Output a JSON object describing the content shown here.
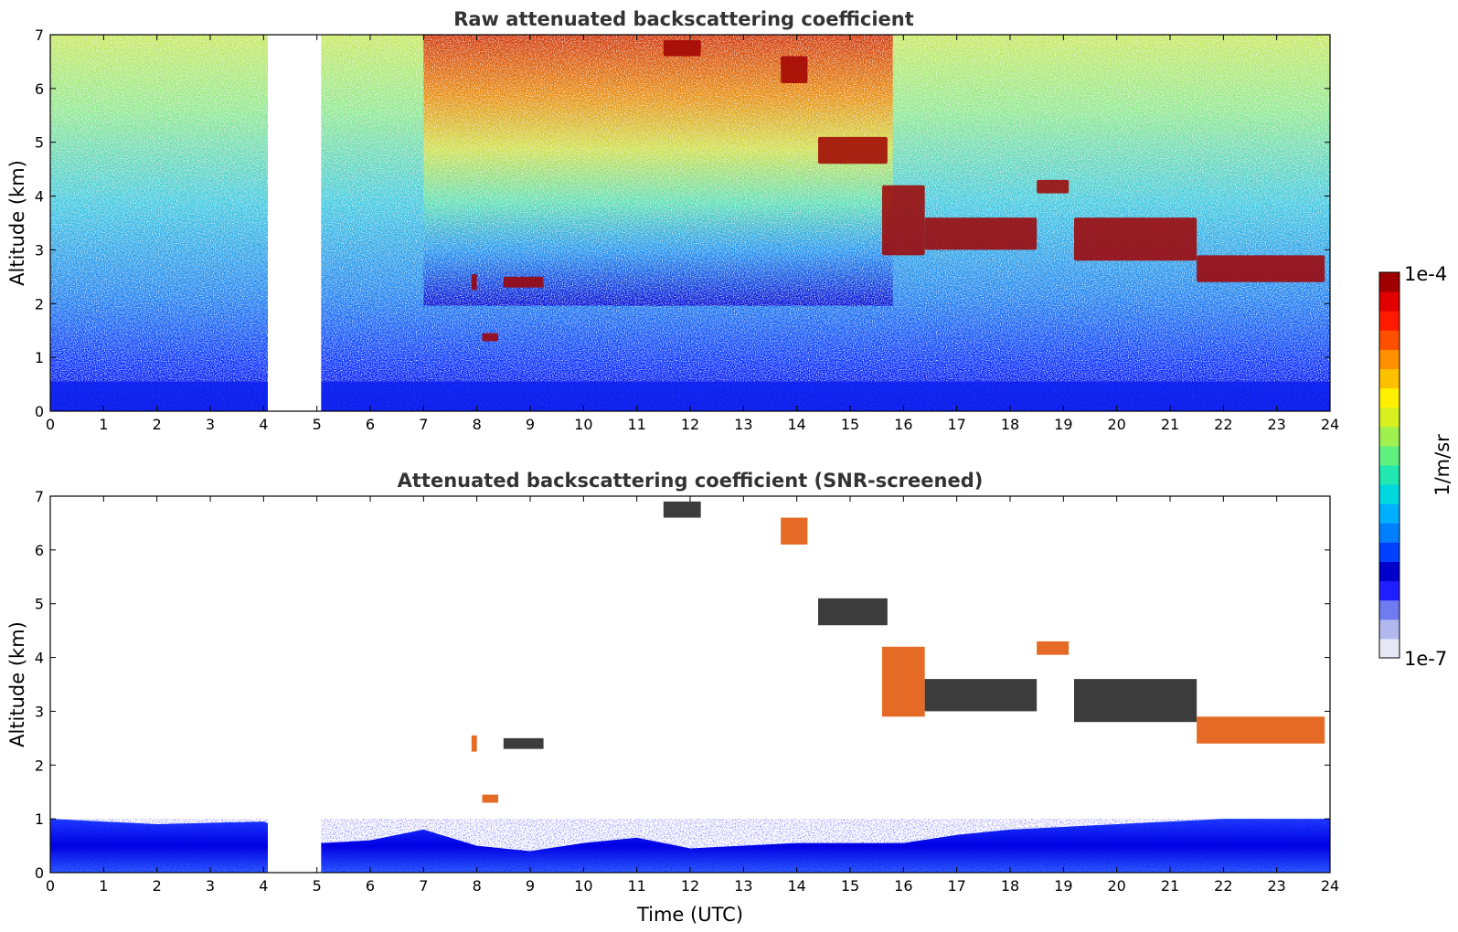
{
  "chart_data": [
    {
      "type": "heatmap",
      "title": "Raw attenuated backscattering coefficient",
      "xlabel": "",
      "ylabel": "Altitude (km)",
      "xlim": [
        0,
        24
      ],
      "ylim": [
        0,
        7
      ],
      "x_ticks": [
        "0",
        "1",
        "2",
        "3",
        "4",
        "5",
        "6",
        "7",
        "8",
        "9",
        "10",
        "11",
        "12",
        "13",
        "14",
        "15",
        "16",
        "17",
        "18",
        "19",
        "20",
        "21",
        "22",
        "23",
        "24"
      ],
      "y_ticks": [
        "0",
        "1",
        "2",
        "3",
        "4",
        "5",
        "6",
        "7"
      ],
      "data_gaps": [
        [
          4.08,
          5.08
        ]
      ],
      "cloud_layers": [
        {
          "t": [
            7.9,
            8.0
          ],
          "alt": [
            2.25,
            2.55
          ]
        },
        {
          "t": [
            8.5,
            9.25
          ],
          "alt": [
            2.3,
            2.5
          ]
        },
        {
          "t": [
            8.1,
            8.4
          ],
          "alt": [
            1.3,
            1.45
          ]
        },
        {
          "t": [
            14.4,
            15.7
          ],
          "alt": [
            4.6,
            5.1
          ]
        },
        {
          "t": [
            15.6,
            16.4
          ],
          "alt": [
            2.9,
            4.2
          ]
        },
        {
          "t": [
            16.4,
            18.5
          ],
          "alt": [
            3.0,
            3.6
          ]
        },
        {
          "t": [
            18.5,
            19.1
          ],
          "alt": [
            4.05,
            4.3
          ]
        },
        {
          "t": [
            19.2,
            21.5
          ],
          "alt": [
            2.8,
            3.6
          ]
        },
        {
          "t": [
            21.5,
            23.9
          ],
          "alt": [
            2.4,
            2.9
          ]
        },
        {
          "t": [
            11.5,
            12.2
          ],
          "alt": [
            6.6,
            6.9
          ]
        },
        {
          "t": [
            13.7,
            14.2
          ],
          "alt": [
            6.1,
            6.6
          ]
        }
      ]
    },
    {
      "type": "heatmap",
      "title": "Attenuated backscattering coefficient (SNR-screened)",
      "xlabel": "Time (UTC)",
      "ylabel": "Altitude (km)",
      "xlim": [
        0,
        24
      ],
      "ylim": [
        0,
        7
      ],
      "x_ticks": [
        "0",
        "1",
        "2",
        "3",
        "4",
        "5",
        "6",
        "7",
        "8",
        "9",
        "10",
        "11",
        "12",
        "13",
        "14",
        "15",
        "16",
        "17",
        "18",
        "19",
        "20",
        "21",
        "22",
        "23",
        "24"
      ],
      "y_ticks": [
        "0",
        "1",
        "2",
        "3",
        "4",
        "5",
        "6",
        "7"
      ],
      "data_gaps": [
        [
          4.08,
          5.08
        ]
      ],
      "boundary_layer_top_km": [
        [
          0,
          1.0
        ],
        [
          2,
          0.9
        ],
        [
          4,
          0.95
        ],
        [
          5.1,
          0.55
        ],
        [
          6,
          0.6
        ],
        [
          7,
          0.8
        ],
        [
          8,
          0.5
        ],
        [
          9,
          0.4
        ],
        [
          10,
          0.55
        ],
        [
          11,
          0.65
        ],
        [
          12,
          0.45
        ],
        [
          14,
          0.55
        ],
        [
          16,
          0.55
        ],
        [
          17,
          0.7
        ],
        [
          18,
          0.8
        ],
        [
          20,
          0.9
        ],
        [
          22,
          1.0
        ],
        [
          24,
          1.0
        ]
      ],
      "colorbar": {
        "label": "1/m/sr",
        "min_label": "1e-7",
        "max_label": "1e-4",
        "scale": "log"
      }
    }
  ],
  "colorbar": {
    "label": "1/m/sr",
    "max_label": "1e-4",
    "min_label": "1e-7",
    "colors": [
      "#e6e8f5",
      "#b0b8ee",
      "#6f7bf0",
      "#1e1eff",
      "#0000cc",
      "#0040ff",
      "#0080ff",
      "#00b0ff",
      "#00d8e0",
      "#20e8b0",
      "#60f080",
      "#a0f050",
      "#d8f020",
      "#fff000",
      "#ffc000",
      "#ff9000",
      "#ff5000",
      "#ff1a00",
      "#e00000",
      "#a00000"
    ]
  }
}
